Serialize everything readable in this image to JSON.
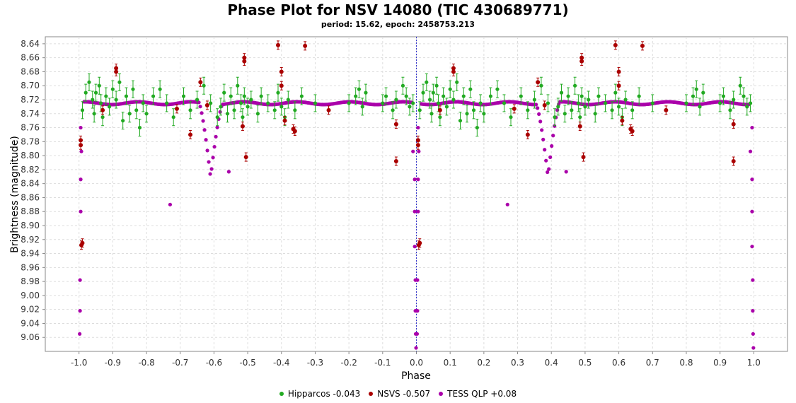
{
  "chart_data": {
    "type": "scatter",
    "title": "Phase Plot for NSV 14080 (TIC 430689771)",
    "subtitle": "period: 15.62, epoch: 2458753.213",
    "xlabel": "Phase",
    "ylabel": "Brightness (magnitude)",
    "xlim": [
      -1.1,
      1.1
    ],
    "ylim": [
      9.08,
      8.63
    ],
    "y_inverted": true,
    "x_ticks": [
      "-1.0",
      "-0.9",
      "-0.8",
      "-0.7",
      "-0.6",
      "-0.5",
      "-0.4",
      "-0.3",
      "-0.2",
      "-0.1",
      "0.0",
      "0.1",
      "0.2",
      "0.3",
      "0.4",
      "0.5",
      "0.6",
      "0.7",
      "0.8",
      "0.9",
      "1.0"
    ],
    "y_ticks": [
      "8.64",
      "8.66",
      "8.68",
      "8.70",
      "8.72",
      "8.74",
      "8.76",
      "8.78",
      "8.80",
      "8.82",
      "8.84",
      "8.86",
      "8.88",
      "8.90",
      "8.92",
      "8.94",
      "8.96",
      "8.98",
      "9.00",
      "9.02",
      "9.04",
      "9.06"
    ],
    "grid": true,
    "legend_position": "bottom",
    "series": [
      {
        "name": "Hipparcos -0.043",
        "color": "#22aa22",
        "error_bars": true,
        "points": [
          [
            -0.99,
            8.735
          ],
          [
            -0.98,
            8.71
          ],
          [
            -0.97,
            8.695
          ],
          [
            -0.96,
            8.72
          ],
          [
            -0.955,
            8.74
          ],
          [
            -0.95,
            8.71
          ],
          [
            -0.94,
            8.7
          ],
          [
            -0.935,
            8.725
          ],
          [
            -0.93,
            8.745
          ],
          [
            -0.92,
            8.715
          ],
          [
            -0.91,
            8.73
          ],
          [
            -0.9,
            8.705
          ],
          [
            -0.89,
            8.72
          ],
          [
            -0.88,
            8.695
          ],
          [
            -0.87,
            8.75
          ],
          [
            -0.86,
            8.715
          ],
          [
            -0.85,
            8.74
          ],
          [
            -0.84,
            8.705
          ],
          [
            -0.83,
            8.735
          ],
          [
            -0.82,
            8.76
          ],
          [
            -0.81,
            8.725
          ],
          [
            -0.8,
            8.74
          ],
          [
            -0.78,
            8.715
          ],
          [
            -0.76,
            8.705
          ],
          [
            -0.74,
            8.725
          ],
          [
            -0.72,
            8.745
          ],
          [
            -0.69,
            8.715
          ],
          [
            -0.67,
            8.735
          ],
          [
            -0.65,
            8.72
          ],
          [
            -0.63,
            8.7
          ],
          [
            -0.61,
            8.725
          ],
          [
            -0.59,
            8.745
          ],
          [
            -0.58,
            8.73
          ],
          [
            -0.57,
            8.71
          ],
          [
            -0.56,
            8.74
          ],
          [
            -0.55,
            8.715
          ],
          [
            -0.54,
            8.735
          ],
          [
            -0.53,
            8.7
          ],
          [
            -0.52,
            8.725
          ],
          [
            -0.515,
            8.745
          ],
          [
            -0.51,
            8.715
          ],
          [
            -0.5,
            8.73
          ],
          [
            -0.49,
            8.72
          ],
          [
            -0.47,
            8.74
          ],
          [
            -0.46,
            8.715
          ],
          [
            -0.44,
            8.725
          ],
          [
            -0.42,
            8.735
          ],
          [
            -0.41,
            8.71
          ],
          [
            -0.4,
            8.73
          ],
          [
            -0.39,
            8.745
          ],
          [
            -0.38,
            8.72
          ],
          [
            -0.36,
            8.735
          ],
          [
            -0.34,
            8.715
          ],
          [
            -0.3,
            8.725
          ],
          [
            -0.2,
            8.725
          ],
          [
            -0.18,
            8.715
          ],
          [
            -0.17,
            8.705
          ],
          [
            -0.16,
            8.73
          ],
          [
            -0.15,
            8.71
          ],
          [
            -0.1,
            8.725
          ],
          [
            -0.09,
            8.715
          ],
          [
            -0.07,
            8.735
          ],
          [
            -0.06,
            8.72
          ],
          [
            -0.04,
            8.7
          ],
          [
            -0.03,
            8.715
          ],
          [
            -0.02,
            8.73
          ],
          [
            -0.01,
            8.725
          ],
          [
            0.01,
            8.735
          ],
          [
            0.02,
            8.71
          ],
          [
            0.03,
            8.695
          ],
          [
            0.04,
            8.72
          ],
          [
            0.045,
            8.74
          ],
          [
            0.05,
            8.71
          ],
          [
            0.06,
            8.7
          ],
          [
            0.065,
            8.725
          ],
          [
            0.07,
            8.745
          ],
          [
            0.08,
            8.715
          ],
          [
            0.09,
            8.73
          ],
          [
            0.1,
            8.705
          ],
          [
            0.11,
            8.72
          ],
          [
            0.12,
            8.695
          ],
          [
            0.13,
            8.75
          ],
          [
            0.14,
            8.715
          ],
          [
            0.15,
            8.74
          ],
          [
            0.16,
            8.705
          ],
          [
            0.17,
            8.735
          ],
          [
            0.18,
            8.76
          ],
          [
            0.19,
            8.725
          ],
          [
            0.2,
            8.74
          ],
          [
            0.22,
            8.715
          ],
          [
            0.24,
            8.705
          ],
          [
            0.26,
            8.725
          ],
          [
            0.28,
            8.745
          ],
          [
            0.31,
            8.715
          ],
          [
            0.33,
            8.735
          ],
          [
            0.35,
            8.72
          ],
          [
            0.37,
            8.7
          ],
          [
            0.39,
            8.725
          ],
          [
            0.41,
            8.745
          ],
          [
            0.42,
            8.73
          ],
          [
            0.43,
            8.71
          ],
          [
            0.44,
            8.74
          ],
          [
            0.45,
            8.715
          ],
          [
            0.46,
            8.735
          ],
          [
            0.47,
            8.7
          ],
          [
            0.48,
            8.725
          ],
          [
            0.485,
            8.745
          ],
          [
            0.49,
            8.715
          ],
          [
            0.5,
            8.73
          ],
          [
            0.51,
            8.72
          ],
          [
            0.53,
            8.74
          ],
          [
            0.54,
            8.715
          ],
          [
            0.56,
            8.725
          ],
          [
            0.58,
            8.735
          ],
          [
            0.59,
            8.71
          ],
          [
            0.6,
            8.73
          ],
          [
            0.61,
            8.745
          ],
          [
            0.62,
            8.72
          ],
          [
            0.64,
            8.735
          ],
          [
            0.66,
            8.715
          ],
          [
            0.7,
            8.725
          ],
          [
            0.8,
            8.725
          ],
          [
            0.82,
            8.715
          ],
          [
            0.83,
            8.705
          ],
          [
            0.84,
            8.73
          ],
          [
            0.85,
            8.71
          ],
          [
            0.9,
            8.725
          ],
          [
            0.91,
            8.715
          ],
          [
            0.93,
            8.735
          ],
          [
            0.94,
            8.72
          ],
          [
            0.96,
            8.7
          ],
          [
            0.97,
            8.715
          ],
          [
            0.98,
            8.73
          ],
          [
            0.99,
            8.725
          ]
        ]
      },
      {
        "name": "NSVS -0.507",
        "color": "#aa0000",
        "error_bars": true,
        "points": [
          [
            -0.995,
            8.785
          ],
          [
            -0.995,
            8.778
          ],
          [
            -0.993,
            8.928
          ],
          [
            -0.99,
            8.925
          ],
          [
            -0.89,
            8.675
          ],
          [
            -0.89,
            8.68
          ],
          [
            -0.93,
            8.735
          ],
          [
            -0.71,
            8.733
          ],
          [
            -0.67,
            8.77
          ],
          [
            -0.64,
            8.695
          ],
          [
            -0.62,
            8.728
          ],
          [
            -0.51,
            8.66
          ],
          [
            -0.51,
            8.665
          ],
          [
            -0.505,
            8.802
          ],
          [
            -0.515,
            8.758
          ],
          [
            -0.41,
            8.642
          ],
          [
            -0.4,
            8.68
          ],
          [
            -0.4,
            8.7
          ],
          [
            -0.39,
            8.75
          ],
          [
            -0.365,
            8.762
          ],
          [
            -0.36,
            8.765
          ],
          [
            -0.33,
            8.643
          ],
          [
            -0.26,
            8.735
          ],
          [
            -0.06,
            8.755
          ],
          [
            -0.06,
            8.808
          ],
          [
            0.005,
            8.785
          ],
          [
            0.005,
            8.778
          ],
          [
            0.007,
            8.928
          ],
          [
            0.01,
            8.925
          ],
          [
            0.11,
            8.675
          ],
          [
            0.11,
            8.68
          ],
          [
            0.07,
            8.735
          ],
          [
            0.29,
            8.733
          ],
          [
            0.33,
            8.77
          ],
          [
            0.36,
            8.695
          ],
          [
            0.38,
            8.728
          ],
          [
            0.49,
            8.66
          ],
          [
            0.49,
            8.665
          ],
          [
            0.495,
            8.802
          ],
          [
            0.485,
            8.758
          ],
          [
            0.59,
            8.642
          ],
          [
            0.6,
            8.68
          ],
          [
            0.6,
            8.7
          ],
          [
            0.61,
            8.75
          ],
          [
            0.635,
            8.762
          ],
          [
            0.64,
            8.765
          ],
          [
            0.67,
            8.643
          ],
          [
            0.74,
            8.735
          ],
          [
            0.94,
            8.755
          ],
          [
            0.94,
            8.808
          ]
        ]
      },
      {
        "name": "TESS QLP +0.08",
        "color": "#aa00aa",
        "error_bars": false,
        "points": [
          [
            -0.995,
            8.76
          ],
          [
            -0.993,
            8.794
          ],
          [
            -0.995,
            8.834
          ],
          [
            -0.995,
            8.88
          ],
          [
            -0.997,
            8.978
          ],
          [
            -0.997,
            9.022
          ],
          [
            -0.998,
            9.055
          ],
          [
            -0.73,
            8.87
          ],
          [
            -0.556,
            8.823
          ],
          [
            0.005,
            8.76
          ],
          [
            0.007,
            8.794
          ],
          [
            0.005,
            8.834
          ],
          [
            0.005,
            8.88
          ],
          [
            0.003,
            8.978
          ],
          [
            0.003,
            9.022
          ],
          [
            0.002,
            9.055
          ],
          [
            0.27,
            8.87
          ],
          [
            0.444,
            8.823
          ],
          [
            -0.01,
            8.794
          ],
          [
            -0.005,
            8.834
          ],
          [
            -0.005,
            8.88
          ],
          [
            -0.005,
            8.93
          ],
          [
            -0.003,
            8.978
          ],
          [
            -0.003,
            9.022
          ],
          [
            -0.002,
            9.055
          ],
          [
            -0.001,
            9.075
          ],
          [
            0.99,
            8.794
          ],
          [
            0.995,
            8.834
          ],
          [
            0.995,
            8.88
          ],
          [
            0.995,
            8.93
          ],
          [
            0.997,
            8.978
          ],
          [
            0.997,
            9.022
          ],
          [
            0.998,
            9.055
          ],
          [
            0.999,
            9.075
          ],
          [
            0.995,
            8.76
          ]
        ]
      }
    ]
  },
  "legend": {
    "items": [
      {
        "label": "Hipparcos -0.043",
        "color": "#22aa22"
      },
      {
        "label": "NSVS -0.507",
        "color": "#aa0000"
      },
      {
        "label": "TESS QLP +0.08",
        "color": "#aa00aa"
      }
    ]
  },
  "colors": {
    "grid": "#dddddd",
    "axis": "#888888",
    "zero_line": "#3333cc"
  }
}
